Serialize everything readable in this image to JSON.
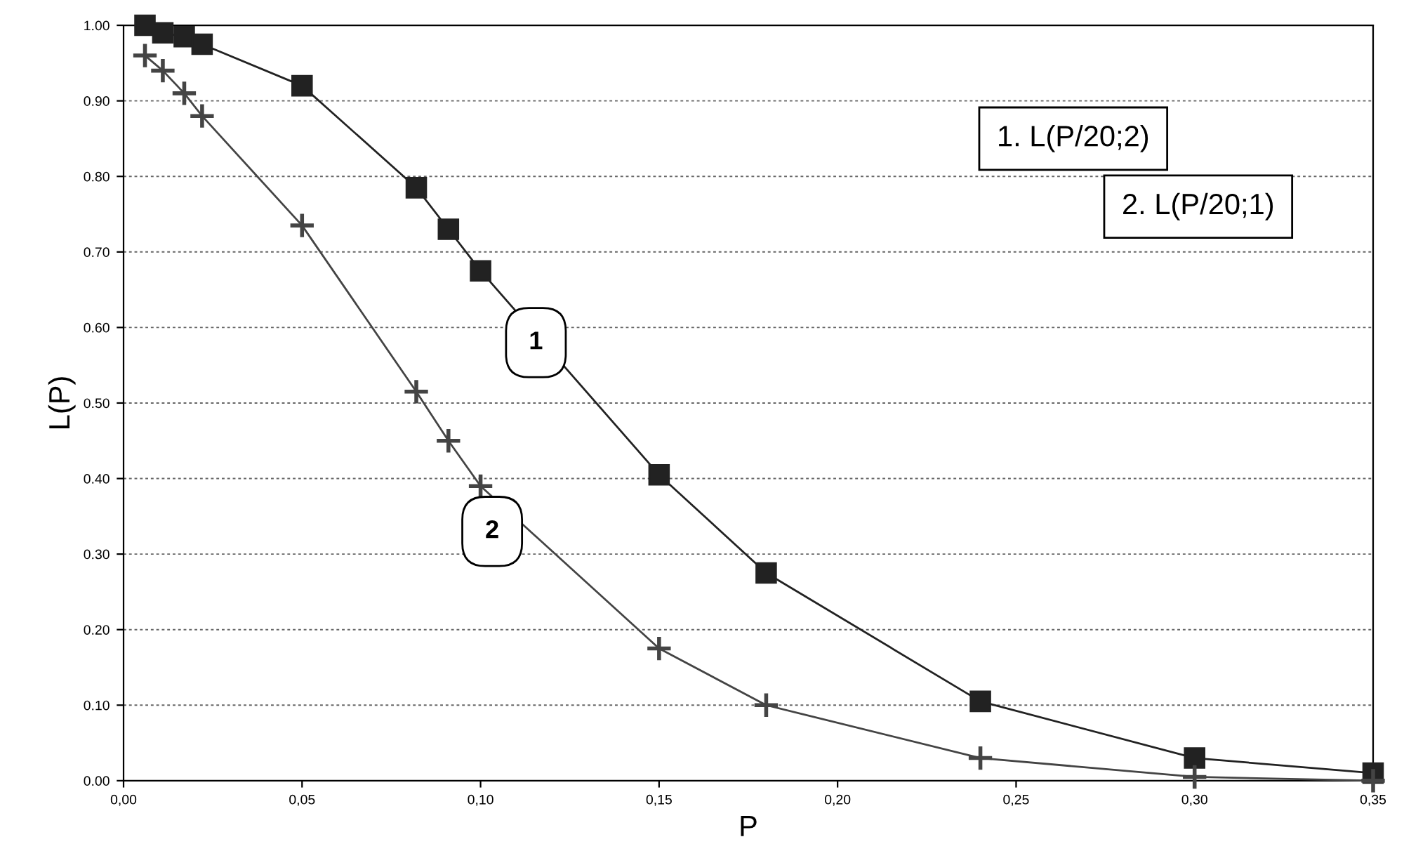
{
  "chart_data": {
    "type": "line",
    "xlabel": "P",
    "ylabel": "L(P)",
    "x": [
      0.006,
      0.011,
      0.017,
      0.022,
      0.05,
      0.082,
      0.091,
      0.1,
      0.15,
      0.18,
      0.24,
      0.3,
      0.35
    ],
    "series": [
      {
        "color": "#222222",
        "marker": "square",
        "values": [
          1.0,
          0.99,
          0.985,
          0.975,
          0.92,
          0.785,
          0.73,
          0.675,
          0.405,
          0.275,
          0.105,
          0.03,
          0.01
        ]
      },
      {
        "color": "#444444",
        "marker": "cross",
        "values": [
          0.96,
          0.94,
          0.91,
          0.88,
          0.735,
          0.515,
          0.45,
          0.39,
          0.175,
          0.1,
          0.03,
          0.005,
          0.0
        ]
      }
    ],
    "annotations": [
      "1. L(P/20;2)",
      "2. L(P/20;1)",
      "1",
      "2"
    ],
    "xlim": [
      0,
      0.35
    ],
    "ylim": [
      0,
      1.0
    ],
    "xticks": [
      {
        "value": 0,
        "label": "0,00"
      },
      {
        "value": 0.05,
        "label": "0,05"
      },
      {
        "value": 0.1,
        "label": "0,10"
      },
      {
        "value": 0.15,
        "label": "0,15"
      },
      {
        "value": 0.2,
        "label": "0,20"
      },
      {
        "value": 0.25,
        "label": "0,25"
      },
      {
        "value": 0.3,
        "label": "0,30"
      },
      {
        "value": 0.35,
        "label": "0,35"
      }
    ],
    "yticks": [
      {
        "value": 0,
        "label": "0.00"
      },
      {
        "value": 0.1,
        "label": "0.10"
      },
      {
        "value": 0.2,
        "label": "0.20"
      },
      {
        "value": 0.3,
        "label": "0.30"
      },
      {
        "value": 0.4,
        "label": "0.40"
      },
      {
        "value": 0.5,
        "label": "0.50"
      },
      {
        "value": 0.6,
        "label": "0.60"
      },
      {
        "value": 0.7,
        "label": "0.70"
      },
      {
        "value": 0.8,
        "label": "0.80"
      },
      {
        "value": 0.9,
        "label": "0.90"
      },
      {
        "value": 1.0,
        "label": "1.00"
      }
    ],
    "grid": "y",
    "line_style": "solid"
  }
}
